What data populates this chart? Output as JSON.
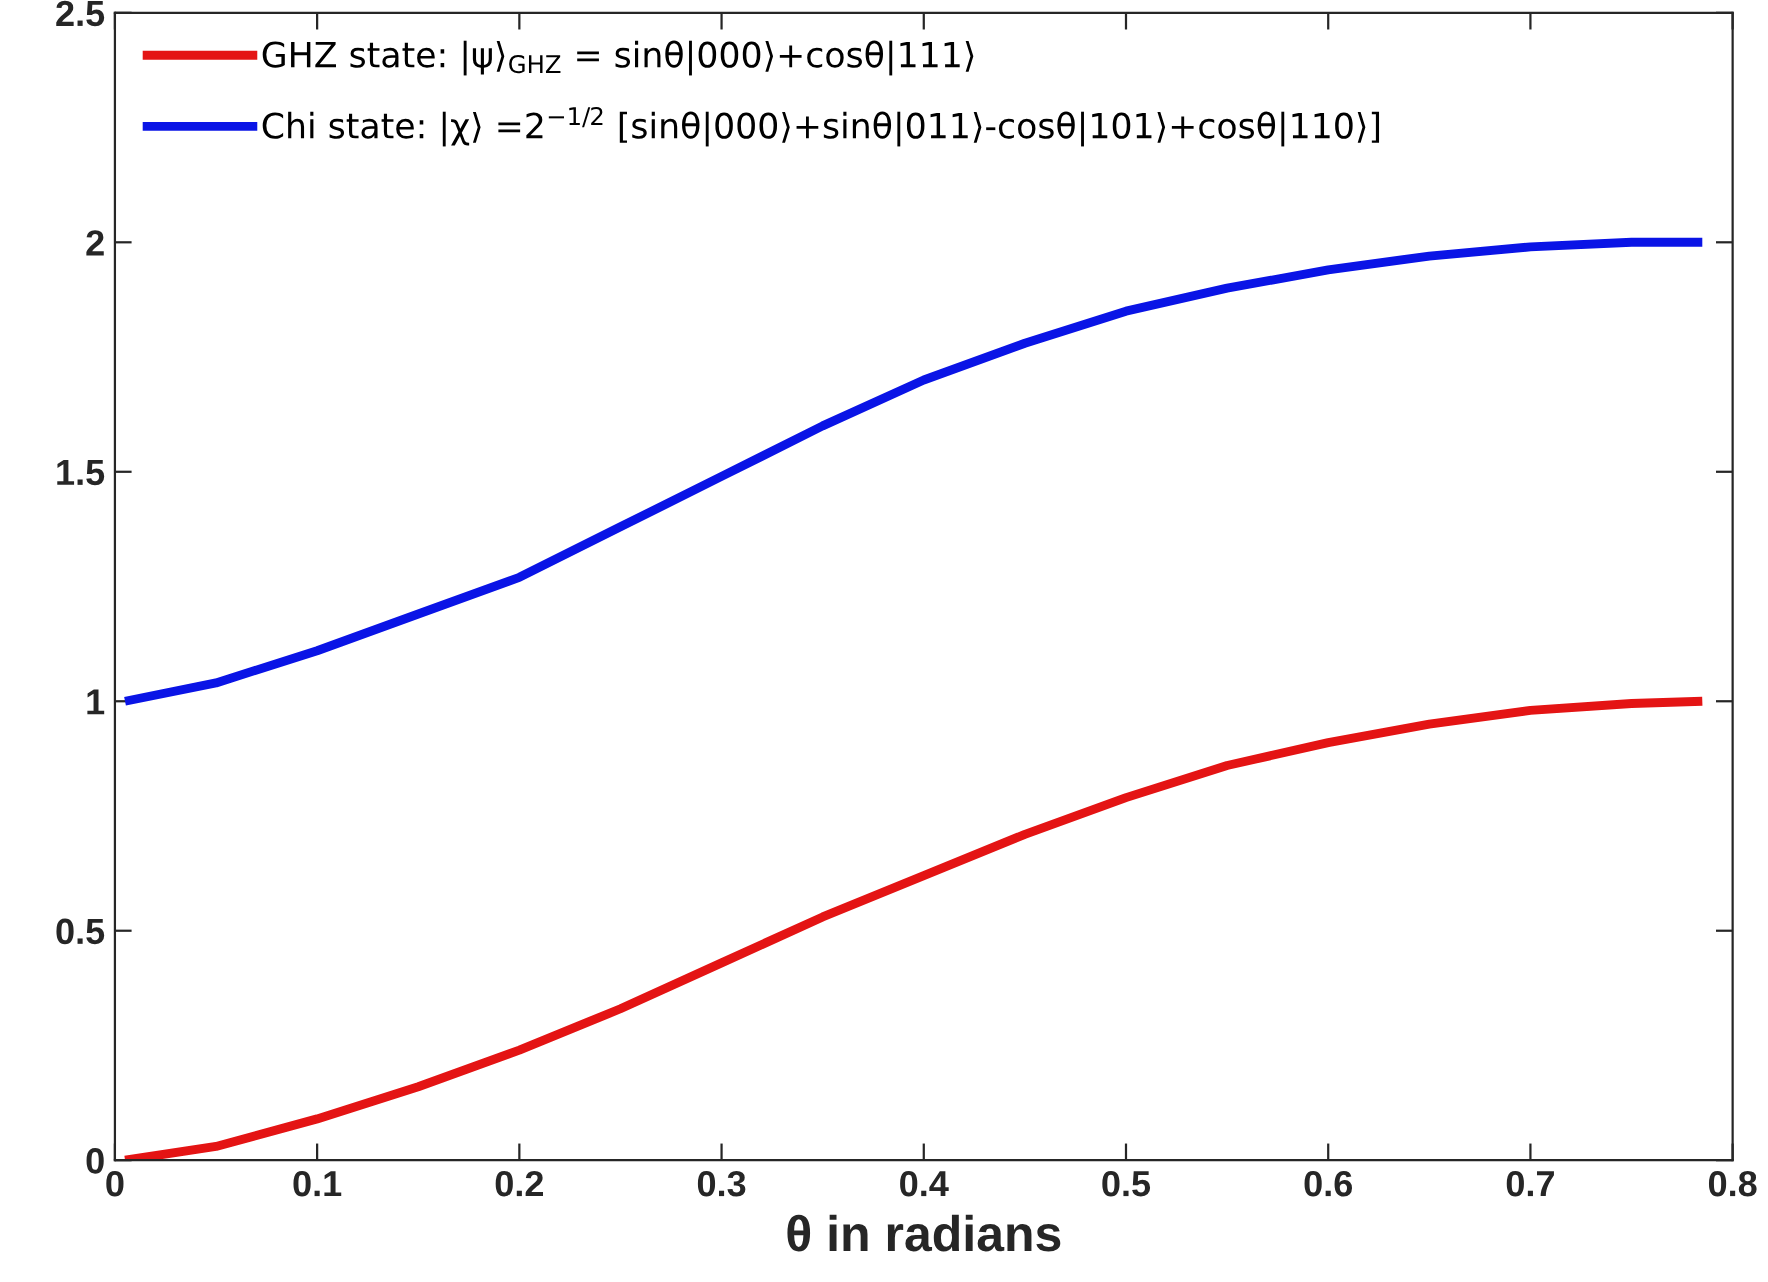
{
  "chart_data": {
    "type": "line",
    "xlabel": "θ in radians",
    "xlim": [
      0,
      0.8
    ],
    "xticks": [
      0,
      0.1,
      0.2,
      0.3,
      0.4,
      0.5,
      0.6,
      0.7,
      0.8
    ],
    "ylim": [
      0,
      2.5
    ],
    "yticks": [
      0,
      0.5,
      1,
      1.5,
      2,
      2.5
    ],
    "grid": false,
    "legend": "top left",
    "marker": "none",
    "line_style": "solid",
    "series": [
      {
        "name": "GHZ state: |ψ⟩$_{GHZ}$ = sinθ|000⟩+cosθ|111⟩",
        "color": "#e41414",
        "x": [
          0.005,
          0.05,
          0.1,
          0.15,
          0.2,
          0.25,
          0.3,
          0.35,
          0.4,
          0.45,
          0.5,
          0.55,
          0.6,
          0.65,
          0.7,
          0.75,
          0.785
        ],
        "values": [
          0,
          0.03,
          0.09,
          0.16,
          0.24,
          0.33,
          0.43,
          0.53,
          0.62,
          0.71,
          0.79,
          0.86,
          0.91,
          0.95,
          0.98,
          0.995,
          1.0
        ]
      },
      {
        "name": "Chi state: |χ⟩ =2$^{−1/2}$ [sinθ|000⟩+sinθ|011⟩-cosθ|101⟩+cosθ|110⟩]",
        "color": "#0a14e6",
        "x": [
          0.005,
          0.05,
          0.1,
          0.15,
          0.2,
          0.25,
          0.3,
          0.35,
          0.4,
          0.45,
          0.5,
          0.55,
          0.6,
          0.65,
          0.7,
          0.75,
          0.785
        ],
        "values": [
          1.0,
          1.04,
          1.11,
          1.19,
          1.27,
          1.38,
          1.49,
          1.6,
          1.7,
          1.78,
          1.85,
          1.9,
          1.94,
          1.97,
          1.99,
          2.0,
          2.0
        ]
      }
    ]
  }
}
